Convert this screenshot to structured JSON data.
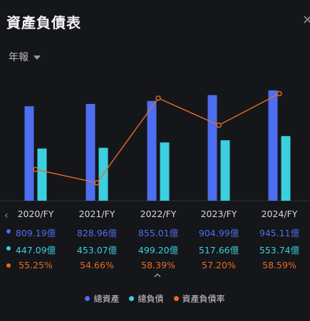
{
  "header": {
    "title": "資產負債表"
  },
  "period": {
    "label": "年報"
  },
  "chart_data": {
    "type": "bar",
    "categories": [
      "2020/FY",
      "2021/FY",
      "2022/FY",
      "2023/FY",
      "2024/FY"
    ],
    "series": [
      {
        "name": "總資產",
        "type": "bar",
        "color": "#4d6ef0",
        "values": [
          809.19,
          828.96,
          855.01,
          904.99,
          945.11
        ],
        "labels": [
          "809.19億",
          "828.96億",
          "855.01億",
          "904.99億",
          "945.11億"
        ]
      },
      {
        "name": "總負債",
        "type": "bar",
        "color": "#3ccfe0",
        "values": [
          447.09,
          453.07,
          499.2,
          517.66,
          553.74
        ],
        "labels": [
          "447.09億",
          "453.07億",
          "499.20億",
          "517.66億",
          "553.74億"
        ]
      },
      {
        "name": "資產負債率",
        "type": "line",
        "color": "#e86b25",
        "values": [
          55.25,
          54.66,
          58.39,
          57.2,
          58.59
        ],
        "labels": [
          "55.25%",
          "54.66%",
          "58.39%",
          "57.20%",
          "58.59%"
        ]
      }
    ],
    "grid": false,
    "legend_position": "bottom"
  }
}
